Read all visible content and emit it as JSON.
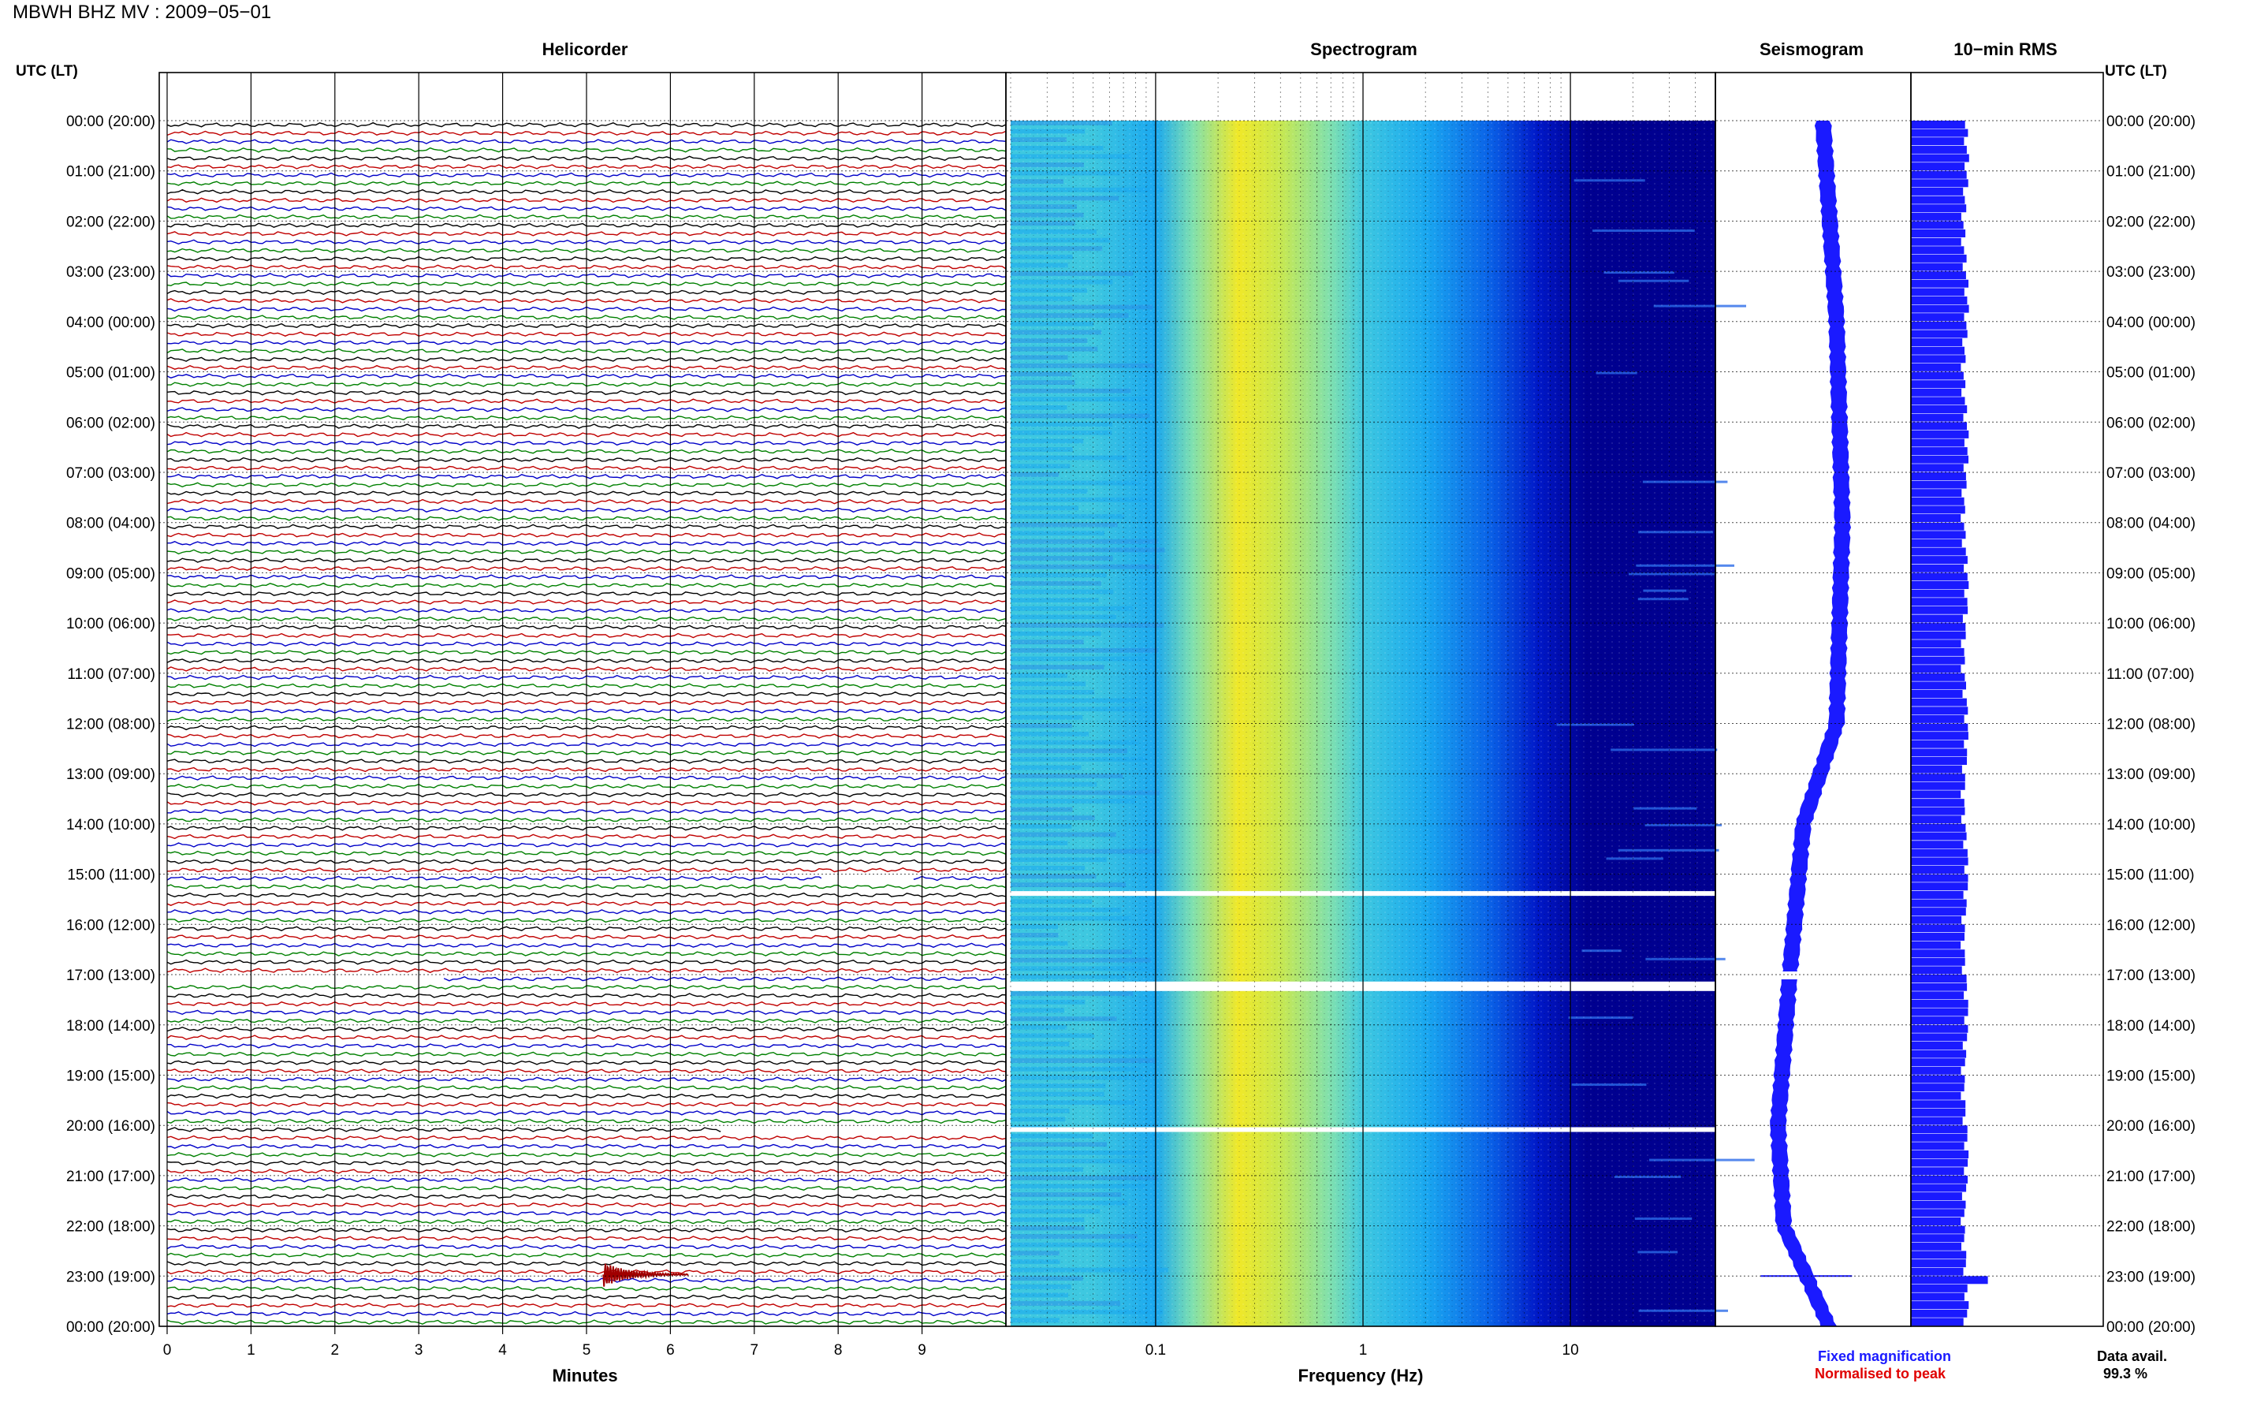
{
  "header": {
    "station_title": "MBWH BHZ MV : 2009−05−01"
  },
  "panels": {
    "helicorder_title": "Helicorder",
    "spectrogram_title": "Spectrogram",
    "seismogram_title": "Seismogram",
    "rms_title": "10−min RMS"
  },
  "axes": {
    "left_time_header": "UTC (LT)",
    "right_time_header": "UTC (LT)",
    "helicorder_xlabel": "Minutes",
    "spectrogram_xlabel": "Frequency (Hz)"
  },
  "legend": {
    "fixed_magnification": "Fixed magnification",
    "normalised_to_peak": "Normalised to peak"
  },
  "availability": {
    "label": "Data avail.",
    "value": "99.3 %"
  },
  "colors": {
    "trace_cycle": [
      "#000000",
      "#c00000",
      "#0000c8",
      "#008000"
    ],
    "seismogram": "#1a1aff",
    "rms_bars": "#1a1aff",
    "event_trace": "#a00000",
    "grid": "#000000"
  },
  "chart_data": [
    {
      "type": "line",
      "panel": "helicorder",
      "xlabel": "Minutes",
      "xticks": [
        "0",
        "1",
        "2",
        "3",
        "4",
        "5",
        "6",
        "7",
        "8",
        "9"
      ],
      "xlim": [
        0,
        10
      ],
      "rows_per_hour": 6,
      "row_minutes": 10,
      "time_ticks": [
        "00:00 (20:00)",
        "01:00 (21:00)",
        "02:00 (22:00)",
        "03:00 (23:00)",
        "04:00 (00:00)",
        "05:00 (01:00)",
        "06:00 (02:00)",
        "07:00 (03:00)",
        "08:00 (04:00)",
        "09:00 (05:00)",
        "10:00 (06:00)",
        "11:00 (07:00)",
        "12:00 (08:00)",
        "13:00 (09:00)",
        "14:00 (10:00)",
        "15:00 (11:00)",
        "16:00 (12:00)",
        "17:00 (13:00)",
        "18:00 (14:00)",
        "19:00 (15:00)",
        "20:00 (16:00)",
        "21:00 (17:00)",
        "22:00 (18:00)",
        "23:00 (19:00)",
        "00:00 (20:00)"
      ],
      "events": [
        {
          "time": "23:00 (19:00)",
          "row_offset": 0,
          "minute": 5.2,
          "amplitude": "large"
        }
      ],
      "gaps": [
        {
          "time": "15:00 (11:00)",
          "row_offset": 0,
          "start_minute": 7.8,
          "end_minute": 8.9
        },
        {
          "time": "17:00 (13:00)",
          "row_offset": 0,
          "start_minute": 0,
          "end_minute": 3.3
        },
        {
          "time": "20:00 (16:00)",
          "row_offset": 0,
          "start_minute": 6.6,
          "end_minute": 10
        }
      ]
    },
    {
      "type": "heatmap",
      "panel": "spectrogram",
      "xlabel": "Frequency (Hz)",
      "xscale": "log",
      "xlim": [
        0.02,
        50
      ],
      "xticks": [
        "0.1",
        "1",
        "10"
      ],
      "colormap": [
        "#000090",
        "#0018c8",
        "#0a64e8",
        "#1aa8f0",
        "#3ec8e0",
        "#7ee0b0",
        "#c8e850",
        "#f0e828"
      ],
      "intensity_profile": [
        {
          "freq": 0.02,
          "level": 0.58
        },
        {
          "freq": 0.05,
          "level": 0.52
        },
        {
          "freq": 0.1,
          "level": 0.48
        },
        {
          "freq": 0.15,
          "level": 0.7
        },
        {
          "freq": 0.25,
          "level": 0.97
        },
        {
          "freq": 0.4,
          "level": 0.85
        },
        {
          "freq": 0.7,
          "level": 0.65
        },
        {
          "freq": 1.0,
          "level": 0.55
        },
        {
          "freq": 2.0,
          "level": 0.45
        },
        {
          "freq": 4.0,
          "level": 0.3
        },
        {
          "freq": 7.0,
          "level": 0.18
        },
        {
          "freq": 12.0,
          "level": 0.05
        },
        {
          "freq": 50.0,
          "level": 0.0
        }
      ],
      "gaps_utc_hours": [
        15.4,
        17.2,
        20.1
      ]
    },
    {
      "type": "line",
      "panel": "seismogram",
      "series_color": "#1a1aff",
      "drift_profile": [
        {
          "hour": 0,
          "offset": 0.55
        },
        {
          "hour": 4,
          "offset": 0.62
        },
        {
          "hour": 8,
          "offset": 0.65
        },
        {
          "hour": 12,
          "offset": 0.62
        },
        {
          "hour": 14,
          "offset": 0.45
        },
        {
          "hour": 17,
          "offset": 0.38
        },
        {
          "hour": 20,
          "offset": 0.32
        },
        {
          "hour": 22,
          "offset": 0.35
        },
        {
          "hour": 24,
          "offset": 0.58
        }
      ],
      "spike_hour": 23,
      "gap_hour": 17
    },
    {
      "type": "bar",
      "panel": "10-min RMS",
      "orientation": "horizontal",
      "categories_per_hour": 6,
      "hours": 24,
      "base_level": 0.88,
      "variation": 0.12,
      "spike_hour": 23,
      "spike_level": 1.25
    }
  ]
}
